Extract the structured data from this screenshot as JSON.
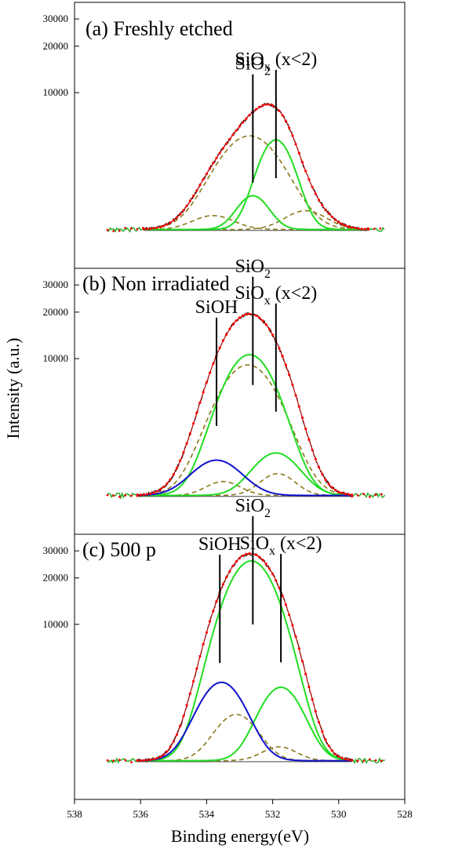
{
  "chart_data": {
    "type": "line",
    "xlabel": "Binding energy(eV)",
    "ylabel": "Intensity (a.u.)",
    "xlim": [
      538,
      528
    ],
    "x_ticks": [
      538,
      536,
      534,
      532,
      530,
      528
    ],
    "y_ticks": [
      10000,
      20000,
      30000
    ],
    "y_scale": "log",
    "background_level": 1300,
    "panels": [
      {
        "id": "a",
        "title": "(a) Freshly etched",
        "ylim": [
          800,
          35000
        ],
        "data_range": [
          535.9,
          529.1
        ],
        "components": [
          {
            "type": "fit-dashed",
            "center": 532.7,
            "sigma": 0.9,
            "amp": 3950
          },
          {
            "type": "fit-dashed",
            "center": 531.0,
            "sigma": 0.6,
            "amp": 420
          },
          {
            "type": "fit-dashed",
            "center": 533.8,
            "sigma": 0.6,
            "amp": 300
          },
          {
            "type": "peak-green",
            "name": "SiO2",
            "center": 532.6,
            "sigma": 0.45,
            "amp": 850
          },
          {
            "type": "peak-green",
            "name": "SiOx",
            "center": 531.9,
            "sigma": 0.5,
            "amp": 3650
          }
        ],
        "annotations": [
          {
            "label": "SiO",
            "sub": "2",
            "tail": "",
            "x": 532.6
          },
          {
            "label": "SiO",
            "sub": "x",
            "tail": " (x<2)",
            "x": 531.9
          }
        ]
      },
      {
        "id": "b",
        "title": "(b) Non irradiated",
        "ylim": [
          800,
          35000
        ],
        "data_range": [
          536.1,
          529.6
        ],
        "components": [
          {
            "type": "fit-dashed",
            "center": 532.75,
            "sigma": 0.85,
            "amp": 7800
          },
          {
            "type": "fit-dashed",
            "center": 531.85,
            "sigma": 0.5,
            "amp": 500
          },
          {
            "type": "fit-dashed",
            "center": 533.5,
            "sigma": 0.5,
            "amp": 300
          },
          {
            "type": "peak-green",
            "name": "SiO2",
            "center": 532.7,
            "sigma": 0.75,
            "amp": 9300
          },
          {
            "type": "peak-green",
            "name": "SiOx",
            "center": 531.9,
            "sigma": 0.65,
            "amp": 1150
          },
          {
            "type": "peak-blue",
            "name": "SiOH",
            "center": 533.7,
            "sigma": 0.7,
            "amp": 900
          }
        ],
        "annotations": [
          {
            "label": "SiO",
            "sub": "2",
            "tail": "",
            "x": 532.6
          },
          {
            "label": "SiOH",
            "sub": "",
            "tail": "",
            "x": 533.7
          },
          {
            "label": "SiO",
            "sub": "x",
            "tail": " (x<2)",
            "x": 531.9
          }
        ]
      },
      {
        "id": "c",
        "title": "(c) 500 p",
        "ylim": [
          800,
          35000
        ],
        "data_range": [
          536.1,
          529.6
        ],
        "components": [
          {
            "type": "fit-dashed",
            "center": 533.1,
            "sigma": 0.6,
            "amp": 1300
          },
          {
            "type": "fit-dashed",
            "center": 531.8,
            "sigma": 0.5,
            "amp": 300
          },
          {
            "type": "peak-green",
            "name": "SiO2",
            "center": 532.65,
            "sigma": 0.75,
            "amp": 24500
          },
          {
            "type": "peak-green",
            "name": "SiOx",
            "center": 531.75,
            "sigma": 0.6,
            "amp": 2600
          },
          {
            "type": "peak-blue",
            "name": "SiOH",
            "center": 533.55,
            "sigma": 0.65,
            "amp": 2900
          }
        ],
        "annotations": [
          {
            "label": "SiO",
            "sub": "2",
            "tail": "",
            "x": 532.6
          },
          {
            "label": "SiOH",
            "sub": "",
            "tail": "",
            "x": 533.6
          },
          {
            "label": "SiO",
            "sub": "x",
            "tail": " (x<2)",
            "x": 531.75
          }
        ]
      }
    ]
  },
  "colors": {
    "experimental": "#000000",
    "envelope": "#cc0000",
    "envelope_dots": "#ff0000",
    "baseline_noise": "#22aa22",
    "peak_green": "#22dd22",
    "peak_blue": "#1010cc",
    "fit_dashed": "#8a7a1a"
  }
}
